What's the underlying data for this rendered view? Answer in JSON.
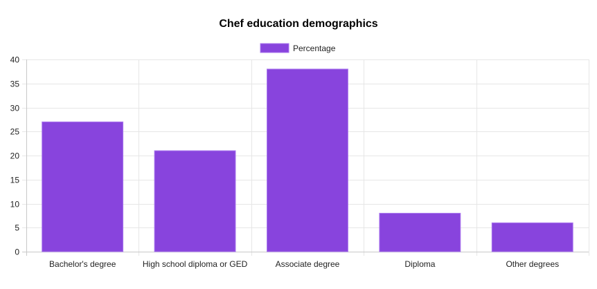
{
  "chart_data": {
    "type": "bar",
    "title": "Chef education demographics",
    "xlabel": "",
    "ylabel": "",
    "categories": [
      "Bachelor's degree",
      "High school diploma or GED",
      "Associate degree",
      "Diploma",
      "Other degrees"
    ],
    "series": [
      {
        "name": "Percentage",
        "values": [
          27,
          21,
          38,
          8,
          6
        ],
        "color": "#8844dd",
        "border_color": "#aa77ee"
      }
    ],
    "ylim": [
      0,
      40
    ],
    "yticks": [
      "0",
      "5",
      "10",
      "15",
      "20",
      "25",
      "30",
      "35",
      "40"
    ],
    "grid": true,
    "legend_position": "top-center"
  }
}
